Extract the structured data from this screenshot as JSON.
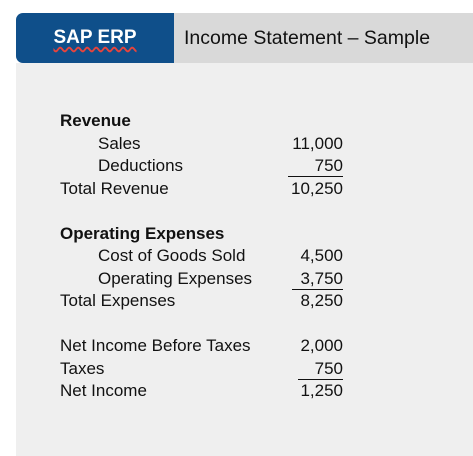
{
  "header": {
    "brand": "SAP ERP",
    "title": "Income Statement – Sample"
  },
  "statement": {
    "revenue_heading": "Revenue",
    "sales_label": "Sales",
    "sales_value": "11,000",
    "deductions_label": "Deductions",
    "deductions_value": "750",
    "total_revenue_label": "Total Revenue",
    "total_revenue_value": "10,250",
    "opex_heading": "Operating Expenses",
    "cogs_label": "Cost of Goods Sold",
    "cogs_value": "4,500",
    "operating_expenses_label": "Operating Expenses",
    "operating_expenses_value": "3,750",
    "total_expenses_label": "Total Expenses",
    "total_expenses_value": "8,250",
    "net_income_before_taxes_label": "Net Income Before Taxes",
    "net_income_before_taxes_value": "2,000",
    "taxes_label": "Taxes",
    "taxes_value": "750",
    "net_income_label": "Net Income",
    "net_income_value": "1,250"
  }
}
